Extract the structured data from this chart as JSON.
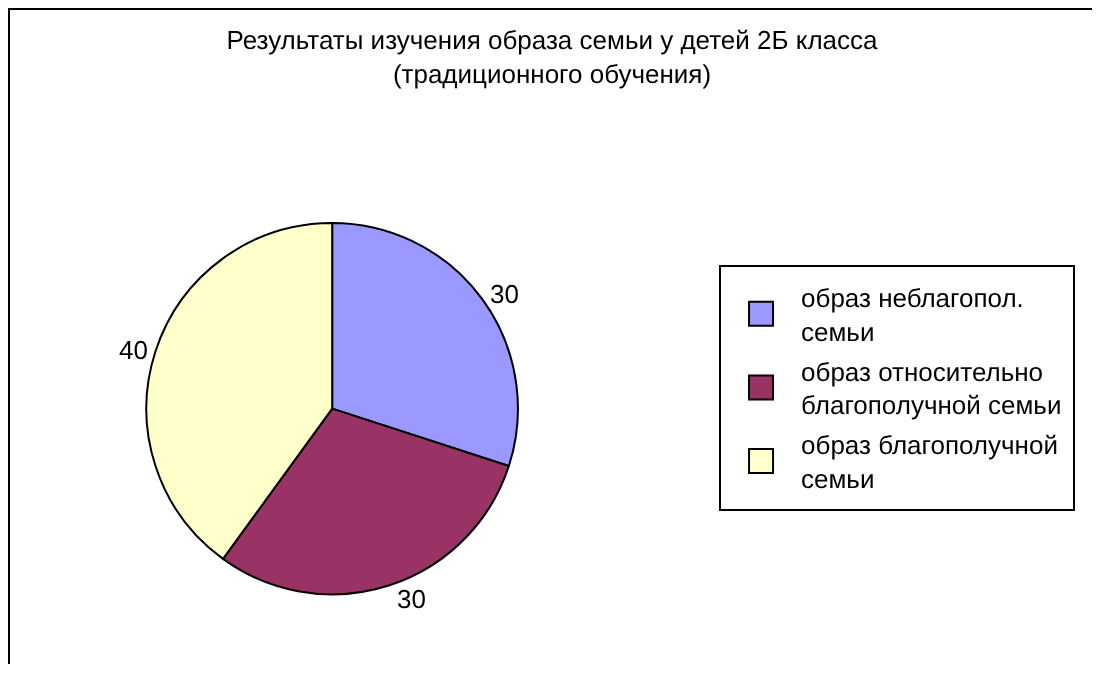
{
  "chart_data": {
    "type": "pie",
    "title": "Результаты изучения образа семьи у детей 2Б класса (традиционного обучения)",
    "categories": [
      "образ неблагопол. семьи",
      "образ относительно благополучной семьи",
      "образ благополучной семьи"
    ],
    "values": [
      30,
      30,
      40
    ],
    "colors": [
      "#9999ff",
      "#993366",
      "#ffffcc"
    ],
    "data_labels": true,
    "legend": "right"
  }
}
